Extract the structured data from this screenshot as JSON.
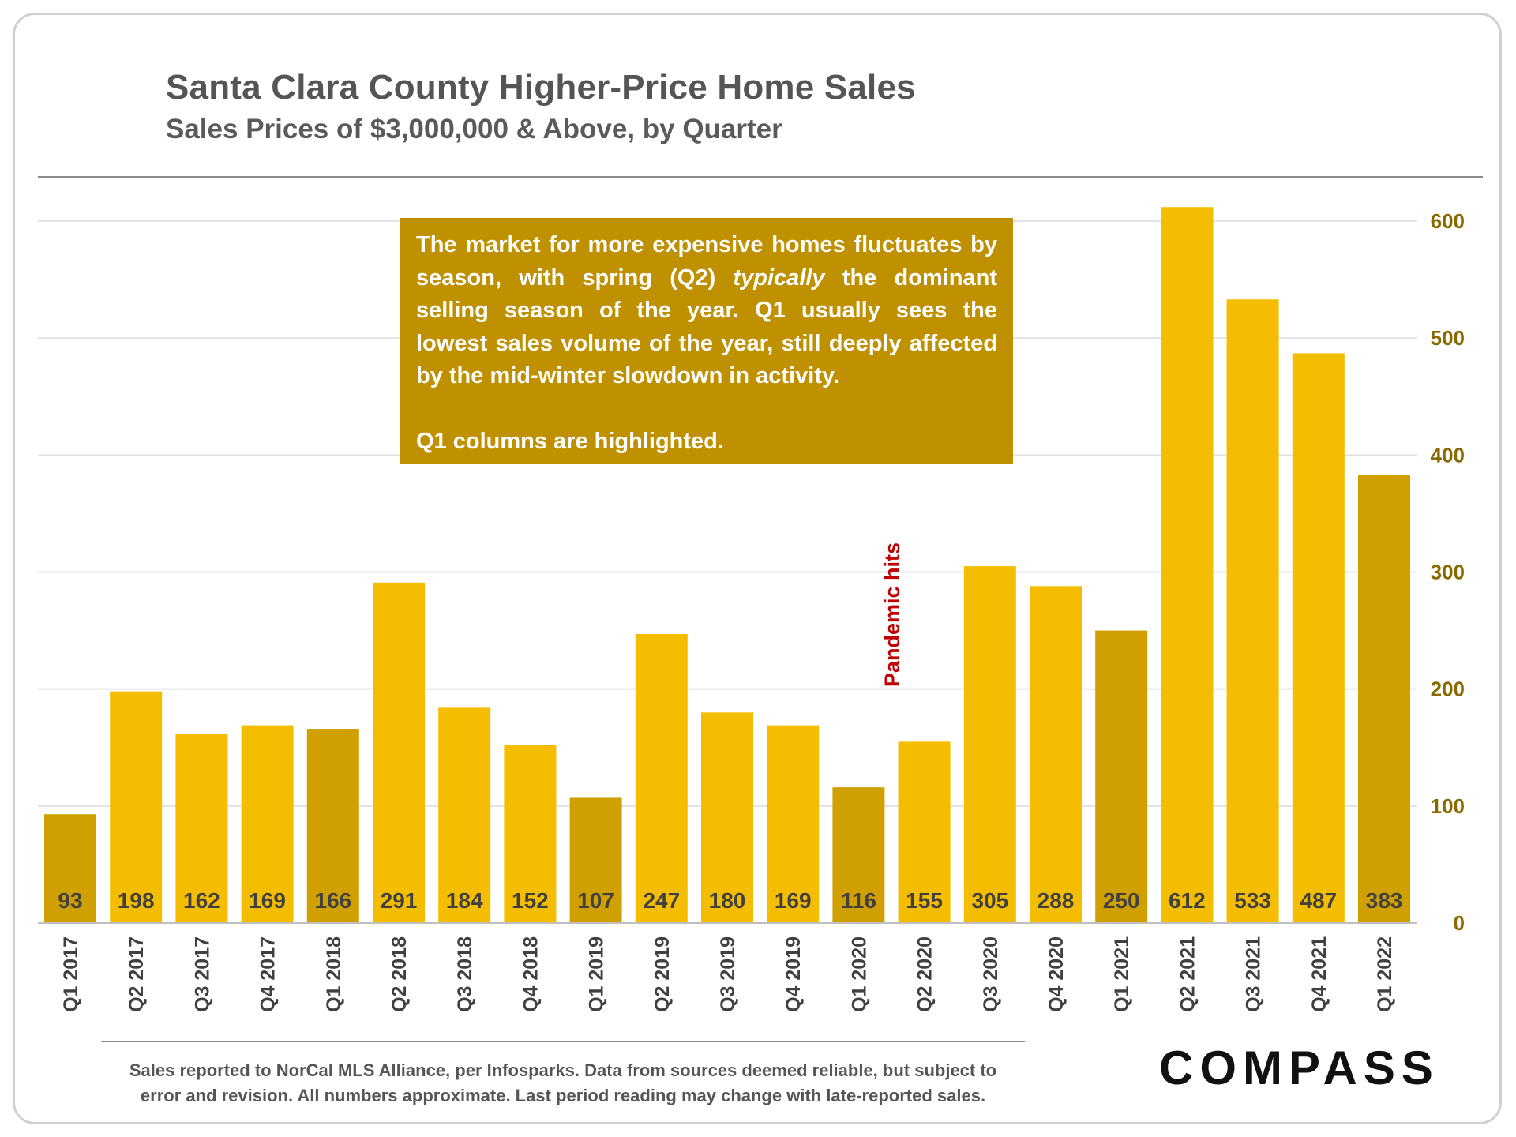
{
  "title": "Santa Clara County Higher-Price Home Sales",
  "subtitle": "Sales Prices of $3,000,000 & Above, by Quarter",
  "annotation": {
    "paragraph1_before": "The market for more expensive homes fluctuates by season, with spring (Q2) ",
    "paragraph1_em": "typically",
    "paragraph1_after": " the dominant selling season of the year. Q1 usually sees the lowest sales volume of the year, still deeply affected by the mid-winter slowdown in activity.",
    "paragraph2": "Q1 columns are highlighted."
  },
  "pandemic_label": "Pandemic hits",
  "footnote_line1": "Sales reported to NorCal MLS Alliance, per Infosparks. Data from sources deemed reliable, but subject to",
  "footnote_line2": "error and revision. All numbers approximate. Last period reading may change with late-reported sales.",
  "logo": "COMPASS",
  "colors": {
    "bar": "#f5bd00",
    "q1_bar": "#d0a000",
    "note_bg": "#bf9000",
    "axis_text": "#8a6a00",
    "label_text": "#404040",
    "pandemic": "#c00000"
  },
  "chart_data": {
    "type": "bar",
    "title": "Santa Clara County Higher-Price Home Sales",
    "subtitle": "Sales Prices of $3,000,000 & Above, by Quarter",
    "categories": [
      "Q1 2017",
      "Q2 2017",
      "Q3 2017",
      "Q4 2017",
      "Q1 2018",
      "Q2 2018",
      "Q3 2018",
      "Q4 2018",
      "Q1 2019",
      "Q2 2019",
      "Q3 2019",
      "Q4 2019",
      "Q1 2020",
      "Q2 2020",
      "Q3 2020",
      "Q4 2020",
      "Q1 2021",
      "Q2 2021",
      "Q3 2021",
      "Q4 2021",
      "Q1 2022"
    ],
    "values": [
      93,
      198,
      162,
      169,
      166,
      291,
      184,
      152,
      107,
      247,
      180,
      169,
      116,
      155,
      305,
      288,
      250,
      612,
      533,
      487,
      383
    ],
    "highlighted": [
      "Q1 2017",
      "Q1 2018",
      "Q1 2019",
      "Q1 2020",
      "Q1 2021",
      "Q1 2022"
    ],
    "y_axis": "right",
    "ylim": [
      0,
      600
    ],
    "yticks": [
      0,
      100,
      200,
      300,
      400,
      500,
      600
    ],
    "grid": true,
    "xlabel": "",
    "ylabel": ""
  }
}
